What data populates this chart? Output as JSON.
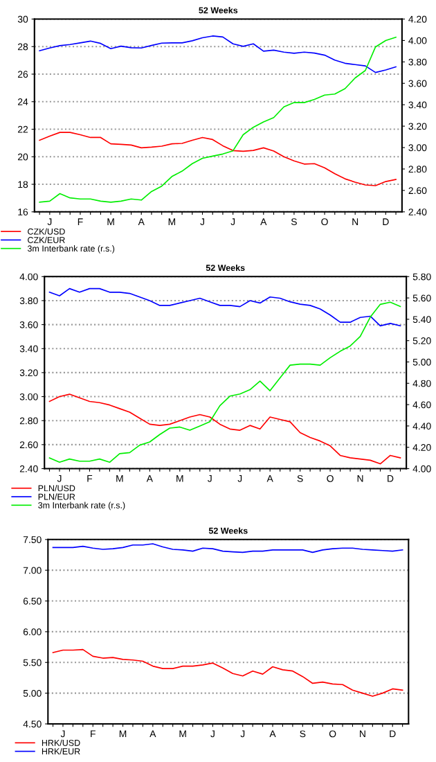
{
  "chart_data": [
    {
      "type": "line",
      "title": "52 Weeks",
      "grid": "y",
      "legend": "bottom left",
      "categories": [
        null,
        "J",
        null,
        null,
        "F",
        null,
        null,
        "M",
        null,
        null,
        "A",
        null,
        null,
        "M",
        null,
        null,
        "J",
        null,
        null,
        "J",
        null,
        null,
        "A",
        null,
        null,
        "S",
        null,
        null,
        "O",
        null,
        null,
        "N",
        null,
        null,
        "D",
        null
      ],
      "ylim": [
        16,
        30
      ],
      "yticks": [
        16,
        18,
        20,
        22,
        24,
        26,
        28,
        30
      ],
      "y2lim": [
        2.4,
        4.2
      ],
      "y2ticks": [
        {
          "value": 2.4,
          "label": "2.40"
        },
        {
          "value": 2.6,
          "label": "2.60"
        },
        {
          "value": 2.8,
          "label": "2.80"
        },
        {
          "value": 3.0,
          "label": "3.00"
        },
        {
          "value": 3.2,
          "label": "3.20"
        },
        {
          "value": 3.4,
          "label": "3.40"
        },
        {
          "value": 3.6,
          "label": "3.60"
        },
        {
          "value": 3.8,
          "label": "3.80"
        },
        {
          "value": 4.0,
          "label": "4.00"
        },
        {
          "value": 4.2,
          "label": "4.20"
        }
      ],
      "series": [
        {
          "name": "CZK/USD",
          "color": "#ff0000",
          "values": [
            21.2,
            21.5,
            21.77,
            21.77,
            21.6,
            21.4,
            21.4,
            20.94,
            20.9,
            20.85,
            20.65,
            20.7,
            20.77,
            20.94,
            20.97,
            21.2,
            21.4,
            21.25,
            20.8,
            20.45,
            20.4,
            20.46,
            20.65,
            20.42,
            20.0,
            19.7,
            19.47,
            19.5,
            19.2,
            18.77,
            18.4,
            18.15,
            17.95,
            17.9,
            18.2,
            18.35
          ]
        },
        {
          "name": "CZK/EUR",
          "color": "#0000ff",
          "values": [
            27.7,
            27.9,
            28.07,
            28.15,
            28.27,
            28.4,
            28.23,
            27.85,
            28.03,
            27.92,
            27.9,
            28.08,
            28.25,
            28.27,
            28.27,
            28.42,
            28.64,
            28.77,
            28.7,
            28.2,
            28.02,
            28.2,
            27.67,
            27.74,
            27.6,
            27.52,
            27.6,
            27.53,
            27.38,
            27.02,
            26.79,
            26.69,
            26.6,
            26.12,
            26.3,
            26.53
          ]
        },
        {
          "name": "3m Interbank rate (r.s.)",
          "color": "#00ee00",
          "axis": "y2",
          "values": [
            2.49,
            2.5,
            2.57,
            2.53,
            2.52,
            2.52,
            2.5,
            2.49,
            2.5,
            2.52,
            2.51,
            2.59,
            2.64,
            2.73,
            2.78,
            2.85,
            2.9,
            2.92,
            2.94,
            2.97,
            3.12,
            3.19,
            3.24,
            3.28,
            3.38,
            3.42,
            3.42,
            3.45,
            3.49,
            3.5,
            3.55,
            3.65,
            3.72,
            3.94,
            4.0,
            4.03
          ]
        }
      ]
    },
    {
      "type": "line",
      "title": "52 Weeks",
      "grid": "y",
      "legend": "bottom left",
      "categories": [
        null,
        "J",
        null,
        null,
        "F",
        null,
        null,
        "M",
        null,
        null,
        "A",
        null,
        null,
        "M",
        null,
        null,
        "J",
        null,
        null,
        "J",
        null,
        null,
        "A",
        null,
        null,
        "S",
        null,
        null,
        "O",
        null,
        null,
        "N",
        null,
        null,
        "D",
        null
      ],
      "ylim": [
        2.4,
        4.0
      ],
      "yticks": [
        {
          "value": 2.4,
          "label": "2.40"
        },
        {
          "value": 2.6,
          "label": "2.60"
        },
        {
          "value": 2.8,
          "label": "2.80"
        },
        {
          "value": 3.0,
          "label": "3.00"
        },
        {
          "value": 3.2,
          "label": "3.20"
        },
        {
          "value": 3.4,
          "label": "3.40"
        },
        {
          "value": 3.6,
          "label": "3.60"
        },
        {
          "value": 3.8,
          "label": "3.80"
        },
        {
          "value": 4.0,
          "label": "4.00"
        }
      ],
      "y2lim": [
        4.0,
        5.8
      ],
      "y2ticks": [
        {
          "value": 4.0,
          "label": "4.00"
        },
        {
          "value": 4.2,
          "label": "4.20"
        },
        {
          "value": 4.4,
          "label": "4.40"
        },
        {
          "value": 4.6,
          "label": "4.60"
        },
        {
          "value": 4.8,
          "label": "4.80"
        },
        {
          "value": 5.0,
          "label": "5.00"
        },
        {
          "value": 5.2,
          "label": "5.20"
        },
        {
          "value": 5.4,
          "label": "5.40"
        },
        {
          "value": 5.6,
          "label": "5.60"
        },
        {
          "value": 5.8,
          "label": "5.80"
        }
      ],
      "series": [
        {
          "name": "PLN/USD",
          "color": "#ff0000",
          "values": [
            2.96,
            3.0,
            3.02,
            2.99,
            2.96,
            2.95,
            2.93,
            2.9,
            2.87,
            2.82,
            2.77,
            2.76,
            2.77,
            2.8,
            2.83,
            2.85,
            2.83,
            2.77,
            2.73,
            2.72,
            2.76,
            2.73,
            2.83,
            2.81,
            2.79,
            2.7,
            2.66,
            2.63,
            2.59,
            2.51,
            2.49,
            2.48,
            2.47,
            2.44,
            2.51,
            2.49
          ]
        },
        {
          "name": "PLN/EUR",
          "color": "#0000ff",
          "values": [
            3.87,
            3.84,
            3.9,
            3.87,
            3.9,
            3.9,
            3.87,
            3.87,
            3.86,
            3.83,
            3.8,
            3.76,
            3.76,
            3.78,
            3.8,
            3.82,
            3.79,
            3.76,
            3.76,
            3.75,
            3.8,
            3.78,
            3.83,
            3.82,
            3.79,
            3.77,
            3.76,
            3.73,
            3.68,
            3.62,
            3.62,
            3.66,
            3.67,
            3.59,
            3.61,
            3.59
          ]
        },
        {
          "name": "3m Interbank rate (r.s.)",
          "color": "#00ee00",
          "axis": "y2",
          "values": [
            4.1,
            4.06,
            4.09,
            4.07,
            4.07,
            4.09,
            4.06,
            4.14,
            4.15,
            4.22,
            4.25,
            4.32,
            4.38,
            4.39,
            4.36,
            4.4,
            4.44,
            4.59,
            4.68,
            4.7,
            4.74,
            4.82,
            4.73,
            4.85,
            4.97,
            4.98,
            4.98,
            4.97,
            5.04,
            5.1,
            5.15,
            5.24,
            5.42,
            5.54,
            5.56,
            5.52
          ]
        }
      ]
    },
    {
      "type": "line",
      "title": "52 Weeks",
      "grid": "y",
      "legend": "bottom left",
      "categories": [
        null,
        "J",
        null,
        null,
        "F",
        null,
        null,
        "M",
        null,
        null,
        "A",
        null,
        null,
        "M",
        null,
        null,
        "J",
        null,
        null,
        "J",
        null,
        null,
        "A",
        null,
        null,
        "S",
        null,
        null,
        "O",
        null,
        null,
        "N",
        null,
        null,
        "D",
        null
      ],
      "ylim": [
        4.5,
        7.5
      ],
      "yticks": [
        {
          "value": 4.5,
          "label": "4.50"
        },
        {
          "value": 5.0,
          "label": "5.00"
        },
        {
          "value": 5.5,
          "label": "5.50"
        },
        {
          "value": 6.0,
          "label": "6.00"
        },
        {
          "value": 6.5,
          "label": "6.50"
        },
        {
          "value": 7.0,
          "label": "7.00"
        },
        {
          "value": 7.5,
          "label": "7.50"
        }
      ],
      "series": [
        {
          "name": "HRK/USD",
          "color": "#ff0000",
          "values": [
            5.66,
            5.7,
            5.7,
            5.71,
            5.6,
            5.57,
            5.58,
            5.55,
            5.54,
            5.52,
            5.44,
            5.4,
            5.4,
            5.44,
            5.44,
            5.46,
            5.49,
            5.41,
            5.32,
            5.28,
            5.36,
            5.31,
            5.43,
            5.38,
            5.36,
            5.27,
            5.16,
            5.18,
            5.15,
            5.14,
            5.05,
            5.0,
            4.95,
            5.0,
            5.07,
            5.05
          ]
        },
        {
          "name": "HRK/EUR",
          "color": "#0000ff",
          "values": [
            7.37,
            7.37,
            7.37,
            7.39,
            7.36,
            7.34,
            7.35,
            7.37,
            7.41,
            7.41,
            7.43,
            7.38,
            7.34,
            7.33,
            7.31,
            7.36,
            7.35,
            7.31,
            7.3,
            7.29,
            7.31,
            7.31,
            7.33,
            7.33,
            7.33,
            7.33,
            7.29,
            7.33,
            7.35,
            7.36,
            7.36,
            7.34,
            7.33,
            7.32,
            7.31,
            7.33
          ]
        }
      ]
    }
  ]
}
